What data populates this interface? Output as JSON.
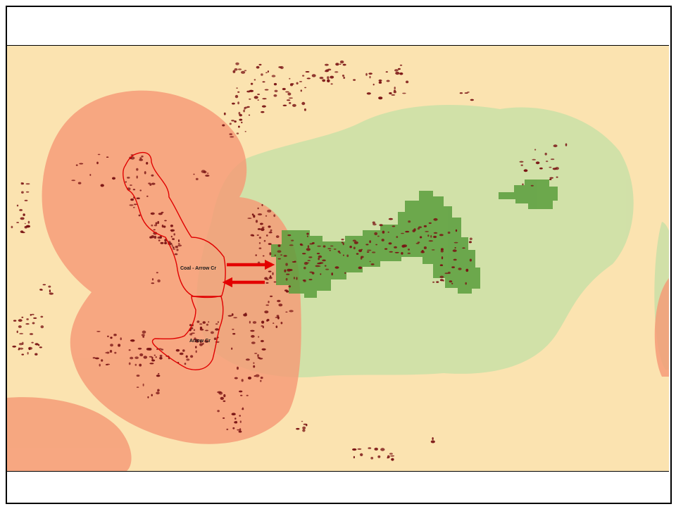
{
  "map": {
    "colors": {
      "background": "#fbe3b0",
      "zone_orange": "#f59a76",
      "zone_green": "#cfe0a8",
      "habitat_green": "#5a9e3c",
      "blocks": "#7a1414",
      "outline": "#e00000",
      "arrow": "#e30000"
    },
    "labels": {
      "unit_north": "Coal - Arrow Cr",
      "unit_south": "Arrow Cr"
    },
    "icons": {
      "arrow_right": "arrow-right-icon",
      "arrow_left": "arrow-left-icon"
    }
  }
}
